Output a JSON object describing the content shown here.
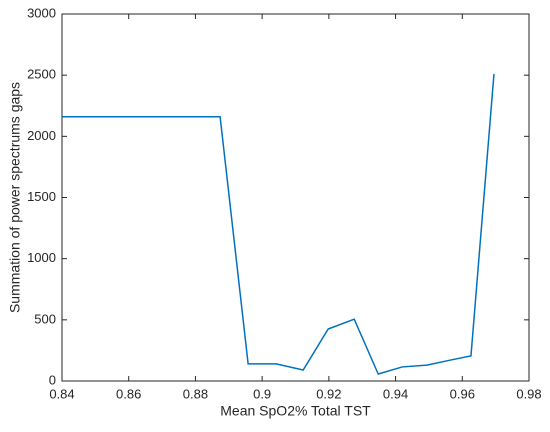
{
  "chart_data": {
    "type": "line",
    "xlabel": "Mean SpO2% Total TST",
    "ylabel": "Summation of power spectrums gaps",
    "x": [
      0.84,
      0.8874,
      0.8958,
      0.9042,
      0.9123,
      0.9198,
      0.9276,
      0.9348,
      0.942,
      0.9494,
      0.9563,
      0.9626,
      0.9695
    ],
    "series": [
      {
        "color": "#0072bd",
        "values": [
          2160,
          2160,
          140,
          140,
          90,
          425,
          505,
          57,
          115,
          130,
          170,
          205,
          2510
        ]
      }
    ],
    "xlim": [
      0.84,
      0.98
    ],
    "xticks": [
      0.84,
      0.86,
      0.88,
      0.9,
      0.92,
      0.94,
      0.96,
      0.98
    ],
    "ylim": [
      0,
      3000
    ],
    "yticks": [
      0,
      500,
      1000,
      1500,
      2000,
      2500,
      3000
    ],
    "grid": false
  }
}
